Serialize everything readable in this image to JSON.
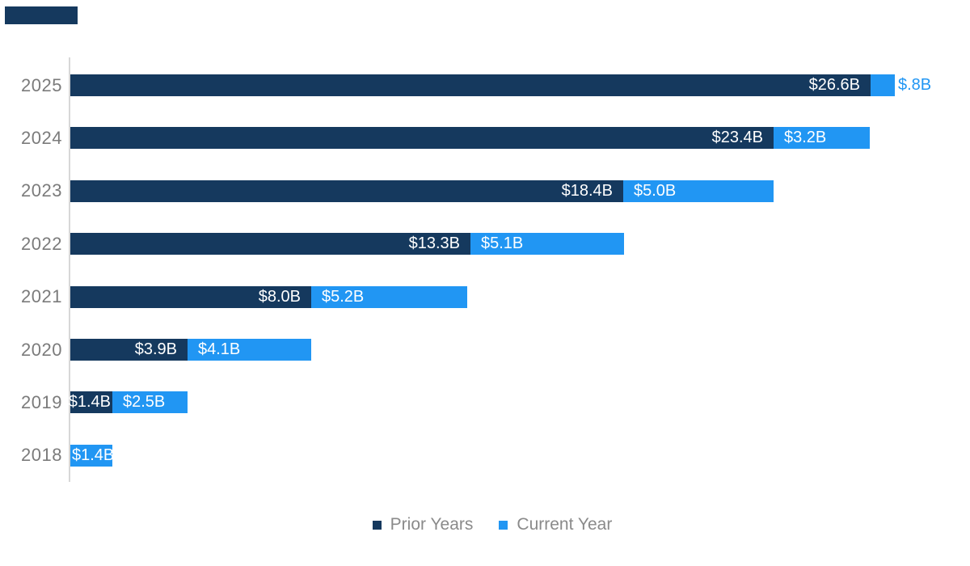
{
  "chart_data": {
    "type": "bar",
    "orientation": "horizontal",
    "stacked": true,
    "title": "",
    "xlabel": "",
    "ylabel": "",
    "grid": false,
    "axis_ticks_visible": false,
    "categories": [
      "2025",
      "2024",
      "2023",
      "2022",
      "2021",
      "2020",
      "2019",
      "2018"
    ],
    "series": [
      {
        "name": "Prior Years",
        "color": "#15395E",
        "values": [
          26.6,
          23.4,
          18.4,
          13.3,
          8.0,
          3.9,
          1.4,
          0
        ]
      },
      {
        "name": "Current Year",
        "color": "#2196F3",
        "values": [
          0.8,
          3.2,
          5.0,
          5.1,
          5.2,
          4.1,
          2.5,
          1.4
        ]
      }
    ],
    "bar_labels": {
      "prior": [
        "$26.6B",
        "$23.4B",
        "$18.4B",
        "$13.3B",
        "$8.0B",
        "$3.9B",
        "$1.4B",
        ""
      ],
      "current": [
        "$.8B",
        "$3.2B",
        "$5.0B",
        "$5.1B",
        "$5.2B",
        "$4.1B",
        "$2.5B",
        "$1.4B"
      ]
    },
    "current_label_placement": [
      "outside",
      "inside",
      "inside",
      "inside",
      "inside",
      "inside",
      "inside",
      "inside"
    ],
    "legend_position": "bottom",
    "legend": [
      {
        "label": "Prior Years",
        "color": "#15395E"
      },
      {
        "label": "Current Year",
        "color": "#2196F3"
      }
    ]
  },
  "colors": {
    "prior": "#15395E",
    "current": "#2196F3",
    "outside_label_text": "#2196F3",
    "year_label_text": "#7b7b7b",
    "legend_text": "#8a8a8a",
    "axis_line": "#d7d7d7",
    "background": "#ffffff",
    "accent_bar": "#15395E"
  }
}
